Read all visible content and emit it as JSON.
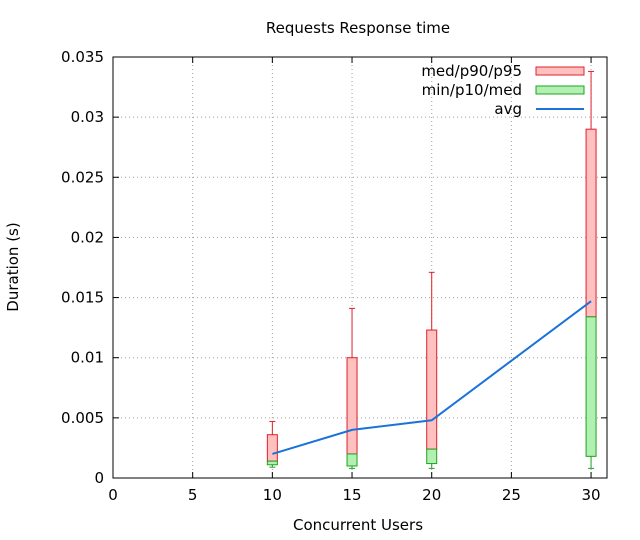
{
  "chart_data": {
    "type": "box",
    "title": "Requests Response time",
    "xlabel": "Concurrent Users",
    "ylabel": "Duration (s)",
    "xlim": [
      0,
      31
    ],
    "ylim": [
      0,
      0.035
    ],
    "xticks": [
      "0",
      "5",
      "10",
      "15",
      "20",
      "25",
      "30"
    ],
    "yticks": [
      "0",
      "0.005",
      "0.01",
      "0.015",
      "0.02",
      "0.025",
      "0.03",
      "0.035"
    ],
    "grid": true,
    "legend_position": "top-right",
    "legend": [
      {
        "label": "med/p90/p95",
        "kind": "box",
        "fill": "#ffc0c0",
        "stroke": "#e0202a"
      },
      {
        "label": "min/p10/med",
        "kind": "box",
        "fill": "#b0f0b0",
        "stroke": "#22a022"
      },
      {
        "label": "avg",
        "kind": "line",
        "stroke": "#1a73d9"
      }
    ],
    "series": [
      {
        "x": 10,
        "min": 0.0009,
        "p10": 0.0011,
        "med": 0.0014,
        "p90": 0.0036,
        "p95": 0.0047,
        "avg": 0.002
      },
      {
        "x": 15,
        "min": 0.0008,
        "p10": 0.001,
        "med": 0.002,
        "p90": 0.01,
        "p95": 0.0141,
        "avg": 0.004
      },
      {
        "x": 20,
        "min": 0.0008,
        "p10": 0.0012,
        "med": 0.0024,
        "p90": 0.0123,
        "p95": 0.0171,
        "avg": 0.0048
      },
      {
        "x": 30,
        "min": 0.0008,
        "p10": 0.0018,
        "med": 0.0134,
        "p90": 0.029,
        "p95": 0.0338,
        "avg": 0.0147
      }
    ],
    "colors": {
      "upper_fill": "#ffc0c0",
      "upper_stroke": "#e0202a",
      "lower_fill": "#b0f0b0",
      "lower_stroke": "#22a022",
      "avg_line": "#1a73d9",
      "grid": "#a0a0a0"
    }
  }
}
